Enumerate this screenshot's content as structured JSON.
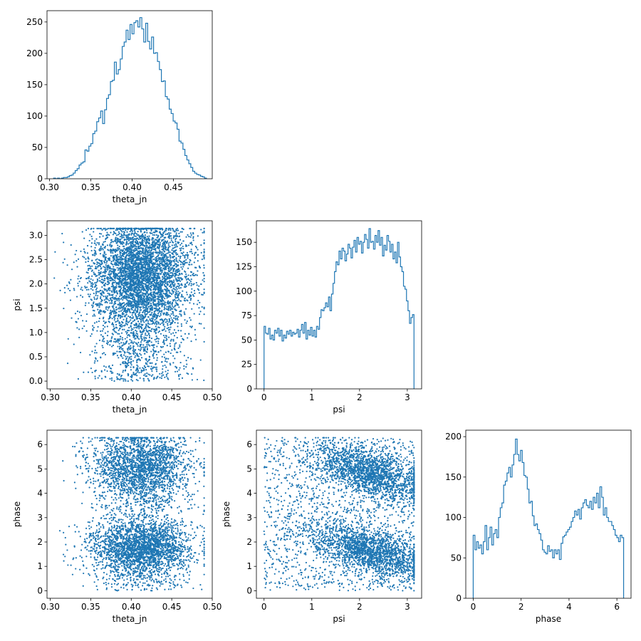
{
  "figure": {
    "type": "corner-plot",
    "color": "#1f77b4",
    "background": "#ffffff"
  },
  "chart_data": [
    {
      "id": "hist-theta_jn",
      "type": "histogram",
      "xlabel": "theta_jn",
      "ylabel": "",
      "xlim": [
        0.297,
        0.497
      ],
      "ylim": [
        0,
        268
      ],
      "xticks": [
        0.3,
        0.35,
        0.4,
        0.45
      ],
      "xticklabels": [
        "0.30",
        "0.35",
        "0.40",
        "0.45"
      ],
      "yticks": [
        0,
        50,
        100,
        150,
        200,
        250
      ],
      "yticklabels": [
        "0",
        "50",
        "100",
        "150",
        "200",
        "250"
      ],
      "bin_range": [
        0.305,
        0.49
      ],
      "counts": [
        1,
        0,
        1,
        0,
        1,
        2,
        2,
        3,
        5,
        6,
        9,
        13,
        16,
        22,
        25,
        27,
        46,
        44,
        52,
        56,
        72,
        76,
        91,
        97,
        108,
        88,
        110,
        128,
        134,
        155,
        157,
        186,
        167,
        174,
        191,
        211,
        218,
        237,
        222,
        246,
        231,
        249,
        252,
        242,
        257,
        239,
        218,
        248,
        219,
        207,
        226,
        200,
        201,
        187,
        174,
        155,
        156,
        131,
        127,
        111,
        104,
        92,
        89,
        79,
        60,
        57,
        47,
        37,
        30,
        24,
        18,
        12,
        9,
        7,
        6,
        4,
        3,
        1
      ]
    },
    {
      "id": "scatter-theta_jn-psi",
      "type": "scatter",
      "xlabel": "theta_jn",
      "ylabel": "psi",
      "xlim": [
        0.296,
        0.5
      ],
      "ylim": [
        -0.16,
        3.3
      ],
      "xticks": [
        0.3,
        0.35,
        0.4,
        0.45,
        0.5
      ],
      "xticklabels": [
        "0.30",
        "0.35",
        "0.40",
        "0.45",
        "0.50"
      ],
      "yticks": [
        0.0,
        0.5,
        1.0,
        1.5,
        2.0,
        2.5,
        3.0
      ],
      "yticklabels": [
        "0.0",
        "0.5",
        "1.0",
        "1.5",
        "2.0",
        "2.5",
        "3.0"
      ],
      "distribution": {
        "n": 5000,
        "x_mean": 0.412,
        "x_sd": 0.031,
        "x_range": [
          0.305,
          0.49
        ],
        "y_range": [
          0,
          3.14
        ],
        "y_components": [
          {
            "weight": 0.36,
            "kind": "uniform"
          },
          {
            "weight": 0.64,
            "kind": "normal",
            "mean": 2.2,
            "sd": 0.55
          }
        ]
      }
    },
    {
      "id": "hist-psi",
      "type": "histogram",
      "xlabel": "psi",
      "ylabel": "",
      "xlim": [
        -0.16,
        3.3
      ],
      "ylim": [
        0,
        172
      ],
      "xticks": [
        0,
        1,
        2,
        3
      ],
      "xticklabels": [
        "0",
        "1",
        "2",
        "3"
      ],
      "yticks": [
        0,
        25,
        50,
        75,
        100,
        125,
        150
      ],
      "yticklabels": [
        "0",
        "25",
        "50",
        "75",
        "100",
        "125",
        "150"
      ],
      "bin_range": [
        0,
        3.14
      ],
      "counts": [
        64,
        57,
        56,
        62,
        51,
        55,
        50,
        60,
        57,
        62,
        54,
        60,
        49,
        55,
        52,
        59,
        56,
        60,
        54,
        58,
        56,
        57,
        61,
        53,
        60,
        66,
        57,
        68,
        51,
        60,
        55,
        63,
        54,
        60,
        53,
        64,
        61,
        73,
        81,
        80,
        83,
        88,
        84,
        94,
        80,
        97,
        108,
        120,
        130,
        127,
        141,
        133,
        144,
        141,
        131,
        138,
        148,
        144,
        134,
        145,
        152,
        140,
        155,
        148,
        151,
        139,
        150,
        158,
        153,
        144,
        164,
        150,
        151,
        143,
        157,
        150,
        162,
        147,
        155,
        136,
        147,
        142,
        157,
        151,
        140,
        148,
        133,
        140,
        129,
        150,
        135,
        125,
        120,
        105,
        102,
        90,
        80,
        67,
        73,
        76
      ]
    },
    {
      "id": "scatter-theta_jn-phase",
      "type": "scatter",
      "xlabel": "theta_jn",
      "ylabel": "phase",
      "xlim": [
        0.296,
        0.5
      ],
      "ylim": [
        -0.31,
        6.59
      ],
      "xticks": [
        0.3,
        0.35,
        0.4,
        0.45,
        0.5
      ],
      "xticklabels": [
        "0.30",
        "0.35",
        "0.40",
        "0.45",
        "0.50"
      ],
      "yticks": [
        0,
        1,
        2,
        3,
        4,
        5,
        6
      ],
      "yticklabels": [
        "0",
        "1",
        "2",
        "3",
        "4",
        "5",
        "6"
      ],
      "distribution": {
        "n": 5000,
        "x_mean": 0.412,
        "x_sd": 0.031,
        "x_range": [
          0.305,
          0.49
        ],
        "y_range": [
          0,
          6.28
        ],
        "y_components": [
          {
            "weight": 0.26,
            "kind": "uniform"
          },
          {
            "weight": 0.4,
            "kind": "normal",
            "mean": 1.75,
            "sd": 0.55
          },
          {
            "weight": 0.34,
            "kind": "normal",
            "mean": 5.1,
            "sd": 0.7
          }
        ]
      }
    },
    {
      "id": "scatter-psi-phase",
      "type": "scatter",
      "xlabel": "psi",
      "ylabel": "phase",
      "xlim": [
        -0.16,
        3.3
      ],
      "ylim": [
        -0.31,
        6.59
      ],
      "xticks": [
        0,
        1,
        2,
        3
      ],
      "xticklabels": [
        "0",
        "1",
        "2",
        "3"
      ],
      "yticks": [
        0,
        1,
        2,
        3,
        4,
        5,
        6
      ],
      "yticklabels": [
        "0",
        "1",
        "2",
        "3",
        "4",
        "5",
        "6"
      ],
      "distribution": {
        "n": 5000,
        "x_range": [
          0,
          3.14
        ],
        "y_range": [
          0,
          6.28
        ],
        "bands": [
          {
            "weight": 0.3,
            "kind": "uniform"
          },
          {
            "weight": 0.36,
            "x_mean": 2.2,
            "x_sd": 0.6,
            "y_start": 2.2,
            "y_slope": -0.55,
            "y_sd": 0.45
          },
          {
            "weight": 0.34,
            "x_mean": 2.2,
            "x_sd": 0.6,
            "y_start": 5.4,
            "y_slope": -0.55,
            "y_sd": 0.5
          }
        ]
      }
    },
    {
      "id": "hist-phase",
      "type": "histogram",
      "xlabel": "phase",
      "ylabel": "",
      "xlim": [
        -0.31,
        6.59
      ],
      "ylim": [
        0,
        208
      ],
      "xticks": [
        0,
        2,
        4,
        6
      ],
      "xticklabels": [
        "0",
        "2",
        "4",
        "6"
      ],
      "yticks": [
        0,
        50,
        100,
        150,
        200
      ],
      "yticklabels": [
        "0",
        "50",
        "100",
        "150",
        "200"
      ],
      "bin_range": [
        0,
        6.28
      ],
      "counts": [
        78,
        60,
        70,
        62,
        66,
        55,
        70,
        90,
        60,
        75,
        88,
        66,
        80,
        85,
        75,
        100,
        112,
        118,
        140,
        145,
        155,
        162,
        150,
        165,
        178,
        197,
        178,
        170,
        183,
        168,
        152,
        150,
        135,
        118,
        120,
        102,
        90,
        92,
        85,
        80,
        72,
        60,
        57,
        55,
        65,
        58,
        60,
        50,
        60,
        55,
        60,
        48,
        68,
        76,
        78,
        82,
        85,
        88,
        95,
        100,
        108,
        103,
        110,
        98,
        112,
        118,
        122,
        115,
        112,
        120,
        110,
        125,
        118,
        130,
        112,
        138,
        125,
        103,
        112,
        100,
        95,
        95,
        90,
        85,
        78,
        75,
        70,
        78,
        75
      ]
    }
  ]
}
